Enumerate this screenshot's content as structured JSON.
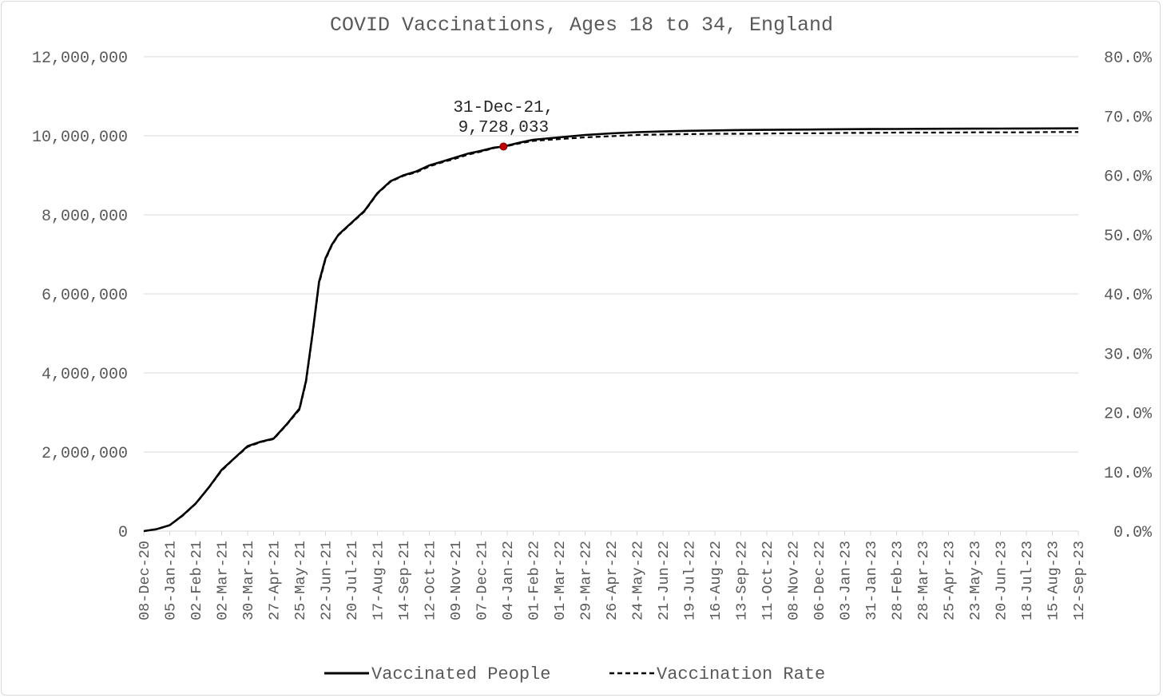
{
  "chart_data": {
    "type": "line",
    "title": "COVID Vaccinations, Ages 18 to 34, England",
    "y_left": {
      "ticks": [
        "0",
        "2,000,000",
        "4,000,000",
        "6,000,000",
        "8,000,000",
        "10,000,000",
        "12,000,000"
      ],
      "ylim": [
        0,
        12000000
      ]
    },
    "y_right": {
      "ticks": [
        "0.0%",
        "10.0%",
        "20.0%",
        "30.0%",
        "40.0%",
        "50.0%",
        "60.0%",
        "70.0%",
        "80.0%"
      ],
      "ylim": [
        0,
        80
      ]
    },
    "x_ticks": [
      "08-Dec-20",
      "05-Jan-21",
      "02-Feb-21",
      "02-Mar-21",
      "30-Mar-21",
      "27-Apr-21",
      "25-May-21",
      "22-Jun-21",
      "20-Jul-21",
      "17-Aug-21",
      "14-Sep-21",
      "12-Oct-21",
      "09-Nov-21",
      "07-Dec-21",
      "04-Jan-22",
      "01-Feb-22",
      "01-Mar-22",
      "29-Mar-22",
      "26-Apr-22",
      "24-May-22",
      "21-Jun-22",
      "19-Jul-22",
      "16-Aug-22",
      "13-Sep-22",
      "11-Oct-22",
      "08-Nov-22",
      "06-Dec-22",
      "03-Jan-23",
      "31-Jan-23",
      "28-Feb-23",
      "28-Mar-23",
      "25-Apr-23",
      "23-May-23",
      "20-Jun-23",
      "18-Jul-23",
      "15-Aug-23",
      "12-Sep-23"
    ],
    "grid": true,
    "legend_placement": "bottom",
    "series": [
      {
        "name": "Vaccinated People",
        "axis": "left",
        "style": "solid",
        "x": [
          "08-Dec-20",
          "22-Dec-20",
          "05-Jan-21",
          "19-Jan-21",
          "02-Feb-21",
          "16-Feb-21",
          "02-Mar-21",
          "16-Mar-21",
          "30-Mar-21",
          "13-Apr-21",
          "27-Apr-21",
          "11-May-21",
          "25-May-21",
          "01-Jun-21",
          "08-Jun-21",
          "15-Jun-21",
          "22-Jun-21",
          "29-Jun-21",
          "06-Jul-21",
          "13-Jul-21",
          "20-Jul-21",
          "03-Aug-21",
          "17-Aug-21",
          "31-Aug-21",
          "14-Sep-21",
          "28-Sep-21",
          "12-Oct-21",
          "26-Oct-21",
          "09-Nov-21",
          "23-Nov-21",
          "07-Dec-21",
          "21-Dec-21",
          "31-Dec-21",
          "18-Jan-22",
          "01-Feb-22",
          "01-Mar-22",
          "29-Mar-22",
          "26-Apr-22",
          "24-May-22",
          "21-Jun-22",
          "19-Jul-22",
          "16-Aug-22",
          "13-Sep-22",
          "11-Oct-22",
          "08-Nov-22",
          "06-Dec-22",
          "03-Jan-23",
          "31-Jan-23",
          "28-Feb-23",
          "28-Mar-23",
          "25-Apr-23",
          "23-May-23",
          "20-Jun-23",
          "18-Jul-23",
          "15-Aug-23",
          "12-Sep-23"
        ],
        "values": [
          0,
          50000,
          150000,
          400000,
          700000,
          1100000,
          1550000,
          1850000,
          2150000,
          2260000,
          2340000,
          2700000,
          3100000,
          3800000,
          5000000,
          6300000,
          6900000,
          7250000,
          7500000,
          7650000,
          7800000,
          8100000,
          8550000,
          8850000,
          9000000,
          9100000,
          9250000,
          9350000,
          9450000,
          9550000,
          9620000,
          9700000,
          9728033,
          9830000,
          9900000,
          9960000,
          10020000,
          10060000,
          10090000,
          10110000,
          10125000,
          10135000,
          10145000,
          10150000,
          10155000,
          10160000,
          10165000,
          10170000,
          10172000,
          10175000,
          10178000,
          10180000,
          10182000,
          10184000,
          10186000,
          10188000
        ]
      },
      {
        "name": "Vaccination Rate",
        "axis": "right",
        "style": "dashed",
        "x": [
          "08-Dec-20",
          "22-Dec-20",
          "05-Jan-21",
          "19-Jan-21",
          "02-Feb-21",
          "16-Feb-21",
          "02-Mar-21",
          "16-Mar-21",
          "30-Mar-21",
          "13-Apr-21",
          "27-Apr-21",
          "11-May-21",
          "25-May-21",
          "01-Jun-21",
          "08-Jun-21",
          "15-Jun-21",
          "22-Jun-21",
          "29-Jun-21",
          "06-Jul-21",
          "13-Jul-21",
          "20-Jul-21",
          "03-Aug-21",
          "17-Aug-21",
          "31-Aug-21",
          "14-Sep-21",
          "28-Sep-21",
          "12-Oct-21",
          "26-Oct-21",
          "09-Nov-21",
          "23-Nov-21",
          "07-Dec-21",
          "21-Dec-21",
          "31-Dec-21",
          "18-Jan-22",
          "01-Feb-22",
          "01-Mar-22",
          "29-Mar-22",
          "26-Apr-22",
          "24-May-22",
          "21-Jun-22",
          "19-Jul-22",
          "16-Aug-22",
          "13-Sep-22",
          "11-Oct-22",
          "08-Nov-22",
          "06-Dec-22",
          "03-Jan-23",
          "31-Jan-23",
          "28-Feb-23",
          "28-Mar-23",
          "25-Apr-23",
          "23-May-23",
          "20-Jun-23",
          "18-Jul-23",
          "15-Aug-23",
          "12-Sep-23"
        ],
        "values": [
          0,
          0.3,
          1.0,
          2.6,
          4.6,
          7.3,
          10.2,
          12.3,
          14.2,
          15.0,
          15.5,
          17.9,
          20.5,
          25.1,
          33.1,
          41.7,
          45.8,
          48.2,
          49.9,
          50.9,
          51.9,
          53.9,
          56.9,
          58.9,
          59.9,
          60.5,
          61.5,
          62.2,
          62.8,
          63.5,
          64.0,
          64.6,
          64.8,
          65.4,
          65.8,
          66.1,
          66.4,
          66.6,
          66.8,
          66.9,
          66.95,
          67.0,
          67.0,
          67.05,
          67.1,
          67.1,
          67.15,
          67.15,
          67.2,
          67.2,
          67.2,
          67.25,
          67.25,
          67.25,
          67.3,
          67.3
        ]
      }
    ],
    "annotations": [
      {
        "x": "31-Dec-21",
        "y": 9728033,
        "series": "Vaccinated People",
        "marker_color": "#c00000",
        "lines": [
          "31-Dec-21,",
          "9,728,033"
        ]
      }
    ],
    "colors": {
      "line": "#000000",
      "grid": "#d9d9d9",
      "text": "#595959",
      "marker": "#c00000"
    }
  }
}
